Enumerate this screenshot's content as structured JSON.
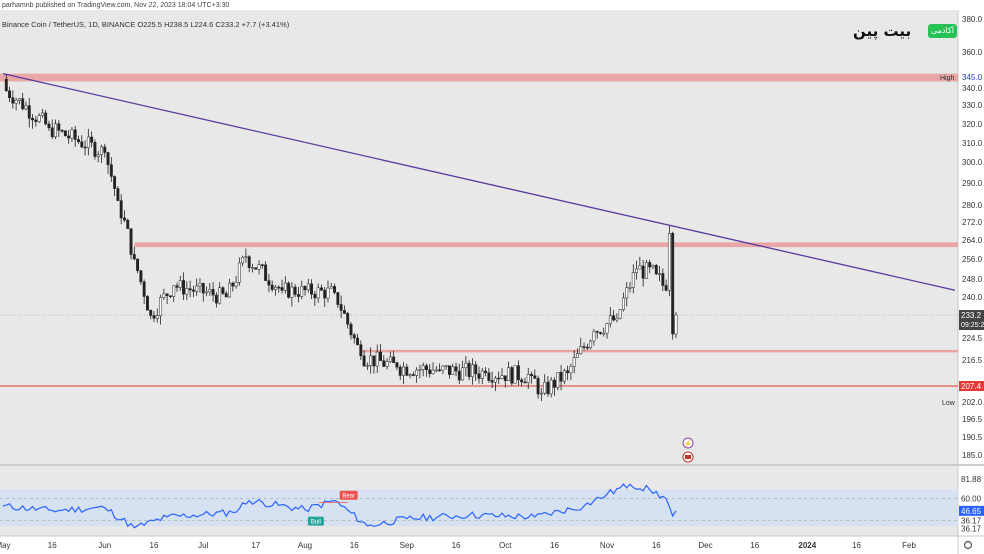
{
  "header": {
    "published": "parhamnb published on TradingView.com, Nov 22, 2023 18:04 UTC+3:30",
    "symbol": "Binance Coin / TetherUS, 1D, BINANCE",
    "open": "O225.5",
    "high": "H238.5",
    "low": "L224.6",
    "close": "C233.2",
    "change": "+7.7 (+3.41%)"
  },
  "logo": {
    "text": "بیت پین",
    "badge": "آکادمی"
  },
  "colors": {
    "background": "#e8e8e8",
    "up": "#ffffff",
    "down": "#222222",
    "zone": "#e89a9a",
    "trendline": "#5a3b9e",
    "rsi_line": "#2962ff",
    "rsi_band": "#d6e2f2",
    "price_label": "#444444",
    "red_label": "#e53935",
    "bull": "#26a69a",
    "bear": "#ef5350"
  },
  "price_axis": {
    "ticks": [
      "380.0",
      "360.0",
      "340.0",
      "330.0",
      "320.0",
      "310.0",
      "300.0",
      "290.0",
      "280.0",
      "272.0",
      "264.0",
      "256.0",
      "248.0",
      "240.0",
      "224.5",
      "216.5",
      "202.0",
      "196.5",
      "190.5",
      "185.0"
    ],
    "current_price": "233.2",
    "countdown": "09:25:23",
    "high_value": "345.0",
    "high_label": "High",
    "low_level_value": "207.4",
    "low_label": "Low"
  },
  "rsi_axis": {
    "ticks": [
      "81.88",
      "60.00",
      "36.17",
      "36.17"
    ],
    "current": "46.65"
  },
  "signals": {
    "bull": "Bull",
    "bear": "Bear"
  },
  "time_axis": [
    "May",
    "16",
    "Jun",
    "16",
    "Jul",
    "17",
    "Aug",
    "16",
    "Sep",
    "16",
    "Oct",
    "16",
    "Nov",
    "16",
    "Dec",
    "16",
    "2024",
    "16",
    "Feb"
  ],
  "chart_data": {
    "type": "candlestick",
    "title": "Binance Coin / TetherUS, 1D, BINANCE",
    "x_range": [
      "2023-05-01",
      "2024-02-15"
    ],
    "ylim": [
      180,
      385
    ],
    "anchor_points": [
      {
        "x": "2023-05-01",
        "close": 340
      },
      {
        "x": "2023-05-15",
        "close": 318
      },
      {
        "x": "2023-06-01",
        "close": 305
      },
      {
        "x": "2023-06-05",
        "close": 282
      },
      {
        "x": "2023-06-10",
        "close": 256
      },
      {
        "x": "2023-06-15",
        "close": 233
      },
      {
        "x": "2023-06-22",
        "close": 245
      },
      {
        "x": "2023-07-08",
        "close": 240
      },
      {
        "x": "2023-07-14",
        "close": 257
      },
      {
        "x": "2023-07-25",
        "close": 243
      },
      {
        "x": "2023-08-10",
        "close": 242
      },
      {
        "x": "2023-08-18",
        "close": 218
      },
      {
        "x": "2023-08-29",
        "close": 214
      },
      {
        "x": "2023-09-11",
        "close": 213
      },
      {
        "x": "2023-09-25",
        "close": 212
      },
      {
        "x": "2023-10-09",
        "close": 211
      },
      {
        "x": "2023-10-12",
        "close": 205
      },
      {
        "x": "2023-10-20",
        "close": 212
      },
      {
        "x": "2023-10-28",
        "close": 227
      },
      {
        "x": "2023-11-04",
        "close": 232
      },
      {
        "x": "2023-11-10",
        "close": 252
      },
      {
        "x": "2023-11-16",
        "close": 250
      },
      {
        "x": "2023-11-19",
        "close": 243
      },
      {
        "x": "2023-11-20",
        "close": 267
      },
      {
        "x": "2023-11-21",
        "close": 226
      },
      {
        "x": "2023-11-22",
        "close": 233.2
      }
    ],
    "resistance_zone": [
      343,
      347
    ],
    "zone_levels": [
      262,
      219.5,
      207.4
    ],
    "trendline": {
      "start": {
        "x": "2023-05-01",
        "y": 347
      },
      "end": {
        "x": "2024-02-15",
        "y": 243
      }
    },
    "rsi": {
      "bands": [
        36.17,
        60.0
      ],
      "levels_shown": [
        81.88,
        60.0,
        36.17
      ],
      "current": 46.65,
      "anchor_points": [
        {
          "x": "2023-05-01",
          "v": 52
        },
        {
          "x": "2023-05-16",
          "v": 47
        },
        {
          "x": "2023-06-01",
          "v": 50
        },
        {
          "x": "2023-06-10",
          "v": 28
        },
        {
          "x": "2023-06-20",
          "v": 40
        },
        {
          "x": "2023-07-10",
          "v": 45
        },
        {
          "x": "2023-07-15",
          "v": 58
        },
        {
          "x": "2023-08-01",
          "v": 48
        },
        {
          "x": "2023-08-10",
          "v": 58
        },
        {
          "x": "2023-08-20",
          "v": 30
        },
        {
          "x": "2023-09-01",
          "v": 38
        },
        {
          "x": "2023-09-20",
          "v": 42
        },
        {
          "x": "2023-10-10",
          "v": 40
        },
        {
          "x": "2023-10-25",
          "v": 52
        },
        {
          "x": "2023-11-01",
          "v": 65
        },
        {
          "x": "2023-11-08",
          "v": 76
        },
        {
          "x": "2023-11-14",
          "v": 70
        },
        {
          "x": "2023-11-19",
          "v": 60
        },
        {
          "x": "2023-11-21",
          "v": 41
        },
        {
          "x": "2023-11-22",
          "v": 46.65
        }
      ]
    }
  }
}
